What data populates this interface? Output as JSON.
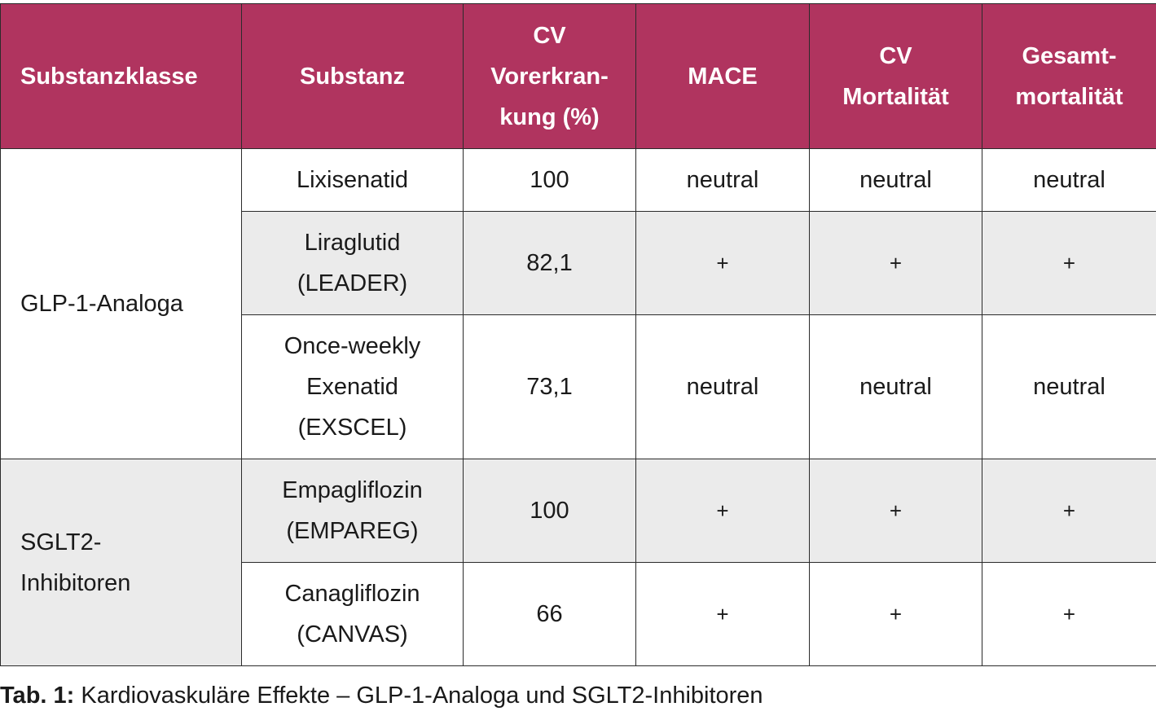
{
  "table": {
    "headers": [
      [
        "Substanzklasse"
      ],
      [
        "Substanz"
      ],
      [
        "CV",
        "Vorerkran-",
        "kung (%)"
      ],
      [
        "MACE"
      ],
      [
        "CV",
        "Mortalität"
      ],
      [
        "Gesamt-",
        "mortalität"
      ]
    ],
    "groups": [
      {
        "class_lines": [
          "GLP-1-Analoga"
        ],
        "rows": [
          {
            "substance_lines": [
              "Lixisenatid"
            ],
            "cv_prior": "100",
            "mace": "neutral",
            "cv_mortality": "neutral",
            "total_mortality": "neutral",
            "shaded": false
          },
          {
            "substance_lines": [
              "Liraglutid",
              "(LEADER)"
            ],
            "cv_prior": "82,1",
            "mace": "+",
            "cv_mortality": "+",
            "total_mortality": "+",
            "shaded": true
          },
          {
            "substance_lines": [
              "Once-weekly",
              "Exenatid",
              "(EXSCEL)"
            ],
            "cv_prior": "73,1",
            "mace": "neutral",
            "cv_mortality": "neutral",
            "total_mortality": "neutral",
            "shaded": false
          }
        ]
      },
      {
        "class_lines": [
          "SGLT2-",
          "Inhibitoren"
        ],
        "rows": [
          {
            "substance_lines": [
              "Empagliflozin",
              "(EMPAREG)"
            ],
            "cv_prior": "100",
            "mace": "+",
            "cv_mortality": "+",
            "total_mortality": "+",
            "shaded": true
          },
          {
            "substance_lines": [
              "Canagliflozin",
              "(CANVAS)"
            ],
            "cv_prior": "66",
            "mace": "+",
            "cv_mortality": "+",
            "total_mortality": "+",
            "shaded": false
          }
        ]
      }
    ]
  },
  "caption": {
    "label": "Tab. 1:",
    "text": " Kardiovaskuläre Effekte – GLP-1-Analoga und SGLT2-Inhibitoren"
  },
  "colors": {
    "header_bg": "#b0345f",
    "header_text": "#ffffff",
    "shade_bg": "#ebebeb"
  }
}
